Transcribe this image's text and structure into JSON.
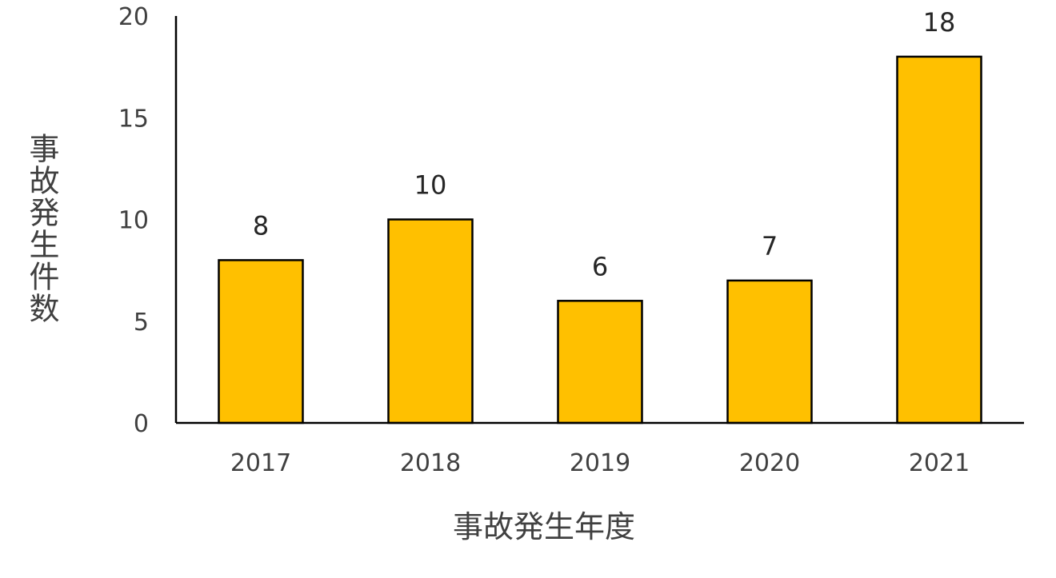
{
  "chart_data": {
    "type": "bar",
    "categories": [
      "2017",
      "2018",
      "2019",
      "2020",
      "2021"
    ],
    "values": [
      8,
      10,
      6,
      7,
      18
    ],
    "title": "",
    "xlabel": "事故発生年度",
    "ylabel": "事故発生件数",
    "ylim": [
      0,
      20
    ],
    "yticks": [
      "0",
      "5",
      "10",
      "15",
      "20"
    ],
    "grid": false,
    "legend": "none",
    "colors": {
      "bar_fill": "#FFC000",
      "bar_stroke": "#000000",
      "axis": "#000000"
    }
  }
}
